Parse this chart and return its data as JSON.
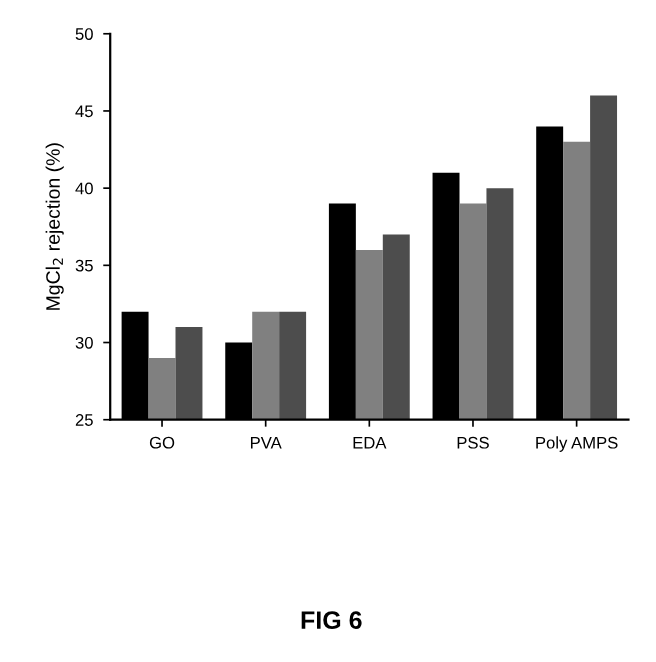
{
  "chart_data": {
    "type": "bar",
    "ylabel": "MgCl$_{2}$ rejection (%)",
    "categories": [
      "GO",
      "PVA",
      "EDA",
      "PSS",
      "Poly AMPS"
    ],
    "series": [
      {
        "color": "#000000",
        "values": [
          32,
          30,
          39,
          41,
          44
        ]
      },
      {
        "color": "#808080",
        "values": [
          29,
          32,
          36,
          39,
          43
        ]
      },
      {
        "color": "#4d4d4d",
        "values": [
          31,
          32,
          37,
          40,
          46
        ]
      }
    ],
    "ylim": [
      25,
      50
    ],
    "yticks": [
      25,
      30,
      35,
      40,
      45,
      50
    ],
    "grid": false,
    "legend": false,
    "annotations": [
      "FIG 6"
    ]
  }
}
